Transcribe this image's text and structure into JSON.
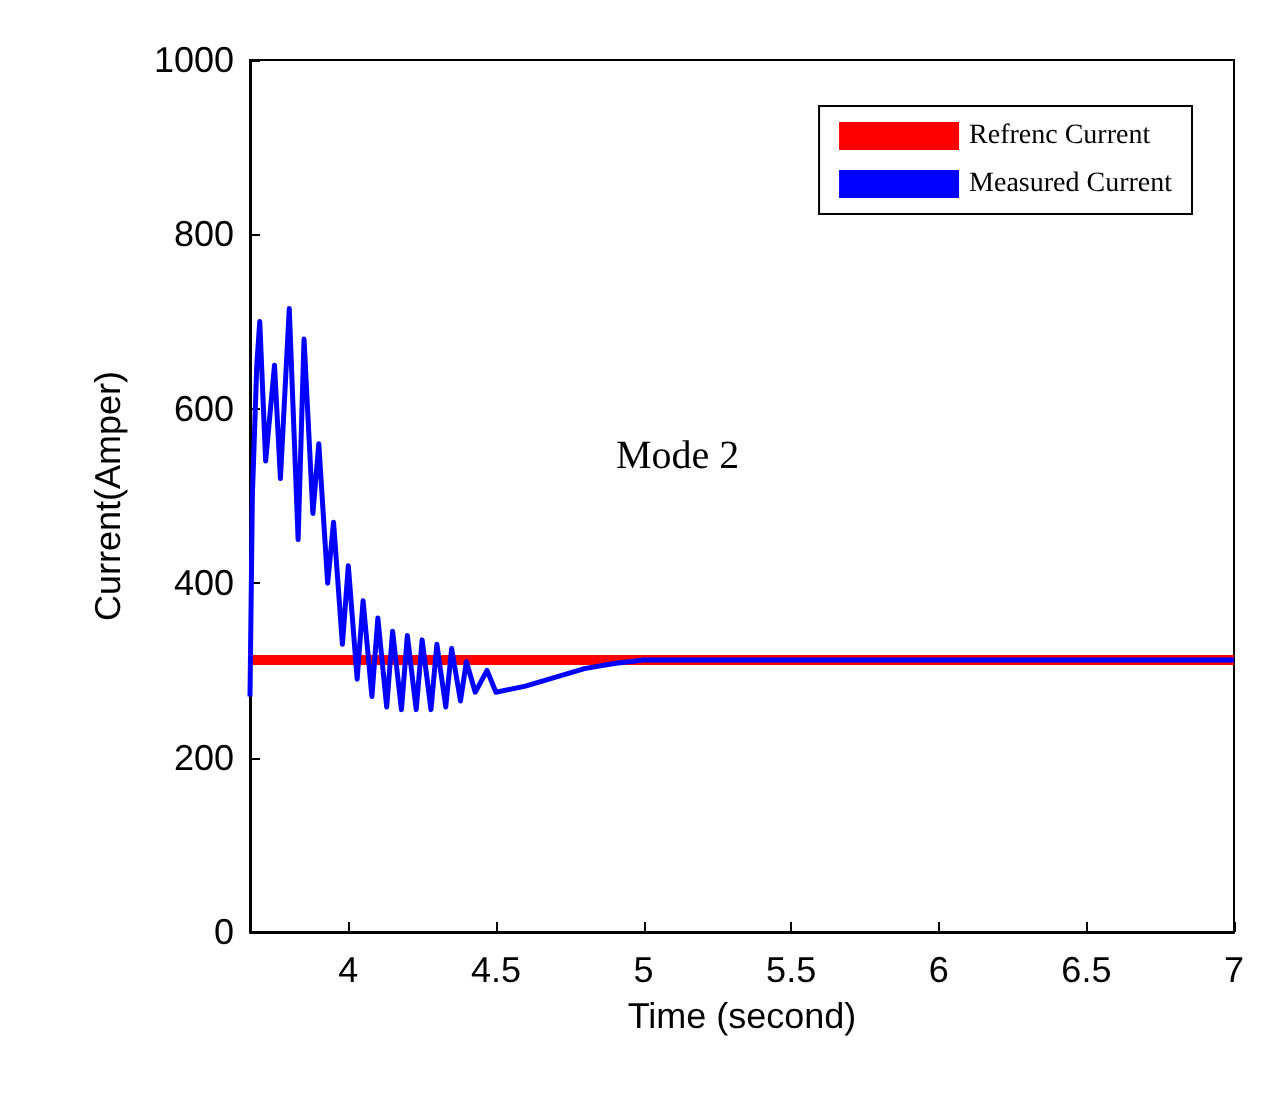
{
  "chart_data": {
    "type": "line",
    "xlabel": "Time (second)",
    "ylabel": "Current(Amper)",
    "annotations": [
      "Mode 2"
    ],
    "xlim": [
      3.667,
      7
    ],
    "xticks": [
      4,
      4.5,
      5,
      5.5,
      6,
      6.5,
      7
    ],
    "ylim": [
      0,
      1000
    ],
    "yticks": [
      0,
      200,
      400,
      600,
      800,
      1000
    ],
    "grid": false,
    "legend": "top right",
    "marker": "none",
    "line_style": "solid",
    "series": [
      {
        "name": "Refrenc Current",
        "color": "#ff0000",
        "x": [
          3.667,
          7
        ],
        "values": [
          312,
          312
        ]
      },
      {
        "name": "Measured Current",
        "color": "#0000ff",
        "x": [
          3.667,
          3.675,
          3.69,
          3.7,
          3.72,
          3.75,
          3.77,
          3.8,
          3.83,
          3.85,
          3.88,
          3.9,
          3.93,
          3.95,
          3.98,
          4.0,
          4.03,
          4.05,
          4.08,
          4.1,
          4.13,
          4.15,
          4.18,
          4.2,
          4.23,
          4.25,
          4.28,
          4.3,
          4.33,
          4.35,
          4.38,
          4.4,
          4.43,
          4.47,
          4.5,
          4.6,
          4.7,
          4.8,
          4.9,
          5.0,
          5.5,
          6.0,
          6.5,
          7.0
        ],
        "values": [
          270,
          500,
          650,
          700,
          540,
          650,
          520,
          715,
          450,
          680,
          480,
          560,
          400,
          470,
          330,
          420,
          290,
          380,
          270,
          360,
          258,
          345,
          255,
          340,
          255,
          335,
          255,
          330,
          258,
          325,
          265,
          310,
          275,
          300,
          275,
          282,
          292,
          302,
          308,
          312,
          312,
          312,
          312,
          312
        ]
      }
    ]
  }
}
